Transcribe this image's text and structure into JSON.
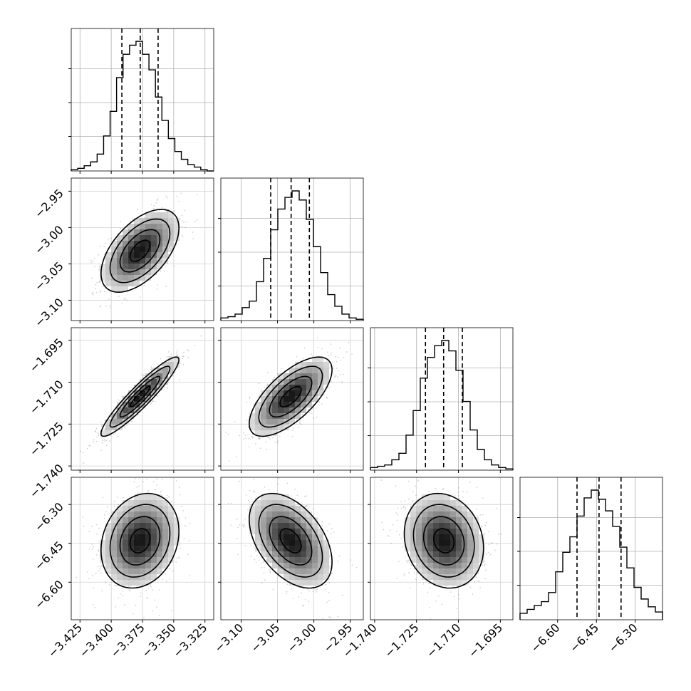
{
  "chart_data": {
    "type": "corner",
    "dimensions": [
      {
        "index": 0,
        "ticks": [
          "−3.425",
          "−3.400",
          "−3.375",
          "−3.350",
          "−3.325"
        ],
        "tick_values": [
          -3.425,
          -3.4,
          -3.375,
          -3.35,
          -3.325
        ],
        "range": [
          -3.432,
          -3.318
        ],
        "quantiles": [
          -3.3915,
          -3.3768,
          -3.3625
        ],
        "mean": -3.377,
        "sd": 0.0145
      },
      {
        "index": 1,
        "ticks": [
          "−3.10",
          "−3.05",
          "−3.00",
          "−2.95"
        ],
        "tick_values": [
          -3.1,
          -3.05,
          -3.0,
          -2.95
        ],
        "range": [
          -3.128,
          -2.932
        ],
        "quantiles": [
          -3.0594,
          -3.0313,
          -3.0062
        ],
        "mean": -3.032,
        "sd": 0.0265
      },
      {
        "index": 2,
        "ticks": [
          "−1.740",
          "−1.725",
          "−1.710",
          "−1.695"
        ],
        "tick_values": [
          -1.74,
          -1.725,
          -1.71,
          -1.695
        ],
        "range": [
          -1.7415,
          -1.6905
        ],
        "quantiles": [
          -1.7218,
          -1.7153,
          -1.7086
        ],
        "mean": -1.7152,
        "sd": 0.0066
      },
      {
        "index": 3,
        "ticks": [
          "−6.60",
          "−6.45",
          "−6.30"
        ],
        "tick_values": [
          -6.6,
          -6.45,
          -6.3
        ],
        "range": [
          -6.745,
          -6.195
        ],
        "quantiles": [
          -6.525,
          -6.44,
          -6.355
        ],
        "mean": -6.44,
        "sd": 0.085
      }
    ],
    "histograms": [
      {
        "dimension": 0,
        "counts": [
          0.01,
          0.02,
          0.04,
          0.07,
          0.13,
          0.27,
          0.46,
          0.72,
          0.9,
          0.97,
          1.0,
          0.9,
          0.78,
          0.57,
          0.39,
          0.25,
          0.15,
          0.09,
          0.05,
          0.03,
          0.01,
          0.0
        ]
      },
      {
        "dimension": 1,
        "counts": [
          0.02,
          0.03,
          0.05,
          0.1,
          0.15,
          0.3,
          0.48,
          0.7,
          0.86,
          0.95,
          1.0,
          0.93,
          0.78,
          0.57,
          0.37,
          0.2,
          0.11,
          0.05,
          0.02,
          0.01
        ]
      },
      {
        "dimension": 2,
        "counts": [
          0.02,
          0.03,
          0.04,
          0.08,
          0.13,
          0.27,
          0.46,
          0.71,
          0.87,
          0.96,
          1.0,
          0.92,
          0.77,
          0.53,
          0.31,
          0.16,
          0.08,
          0.04,
          0.02,
          0.01
        ]
      },
      {
        "dimension": 3,
        "counts": [
          0.05,
          0.08,
          0.11,
          0.14,
          0.21,
          0.37,
          0.52,
          0.64,
          0.8,
          0.94,
          1.0,
          0.93,
          0.84,
          0.72,
          0.56,
          0.4,
          0.25,
          0.16,
          0.1,
          0.06
        ]
      }
    ],
    "pairs": [
      {
        "x": 0,
        "y": 1,
        "correlation": 0.55
      },
      {
        "x": 0,
        "y": 2,
        "correlation": 0.93
      },
      {
        "x": 1,
        "y": 2,
        "correlation": 0.68
      },
      {
        "x": 0,
        "y": 3,
        "correlation": 0.2
      },
      {
        "x": 1,
        "y": 3,
        "correlation": -0.45
      },
      {
        "x": 2,
        "y": 3,
        "correlation": -0.15
      }
    ],
    "grid": true,
    "contour_levels": [
      0.5,
      1.0,
      1.5,
      2.0
    ]
  }
}
